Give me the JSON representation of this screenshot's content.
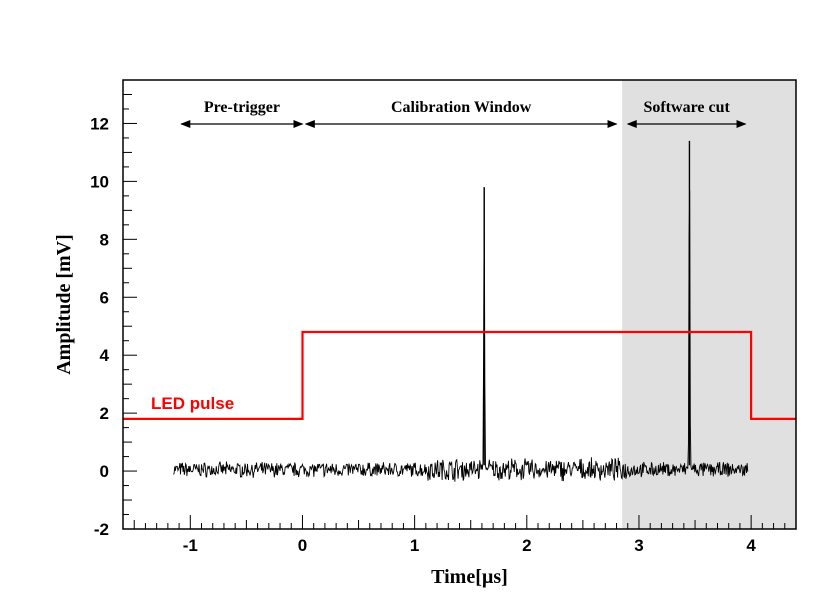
{
  "chart_data": {
    "type": "line",
    "title": "",
    "xlabel": "Time[µs]",
    "ylabel": "Amplitude [mV]",
    "xlim": [
      -1.6,
      4.4
    ],
    "ylim": [
      -2,
      13.5
    ],
    "x_ticks": [
      -1,
      0,
      1,
      2,
      3,
      4
    ],
    "y_ticks": [
      -2,
      0,
      2,
      4,
      6,
      8,
      10,
      12
    ],
    "x_tick_labels": [
      "-1",
      "0",
      "1",
      "2",
      "3",
      "4"
    ],
    "y_tick_labels": [
      "-2",
      "0",
      "2",
      "4",
      "6",
      "8",
      "10",
      "12"
    ],
    "grid": false,
    "shaded_region": {
      "label": "Software cut",
      "x_start": 2.85,
      "x_end": 4.4,
      "color": "#e0e0e0"
    },
    "annotations": [
      {
        "label": "Pre-trigger",
        "x_start": -1.08,
        "x_end": 0
      },
      {
        "label": "Calibration Window",
        "x_start": 0.03,
        "x_end": 2.8
      },
      {
        "label": "Software cut",
        "x_start": 2.9,
        "x_end": 3.95
      }
    ],
    "series": [
      {
        "name": "LED pulse",
        "color": "#ff0000",
        "x": [
          -1.6,
          0,
          0,
          4,
          4,
          4.4
        ],
        "y": [
          1.8,
          1.8,
          4.8,
          4.8,
          1.8,
          1.8
        ]
      },
      {
        "name": "",
        "color": "#000000",
        "noise_x_range": [
          -1.15,
          3.97
        ],
        "baseline": 0.05,
        "noise_amplitude": 0.22,
        "peaks": [
          {
            "x": 1.62,
            "height": 9.8
          },
          {
            "x": 3.45,
            "height": 11.4
          }
        ]
      }
    ]
  }
}
